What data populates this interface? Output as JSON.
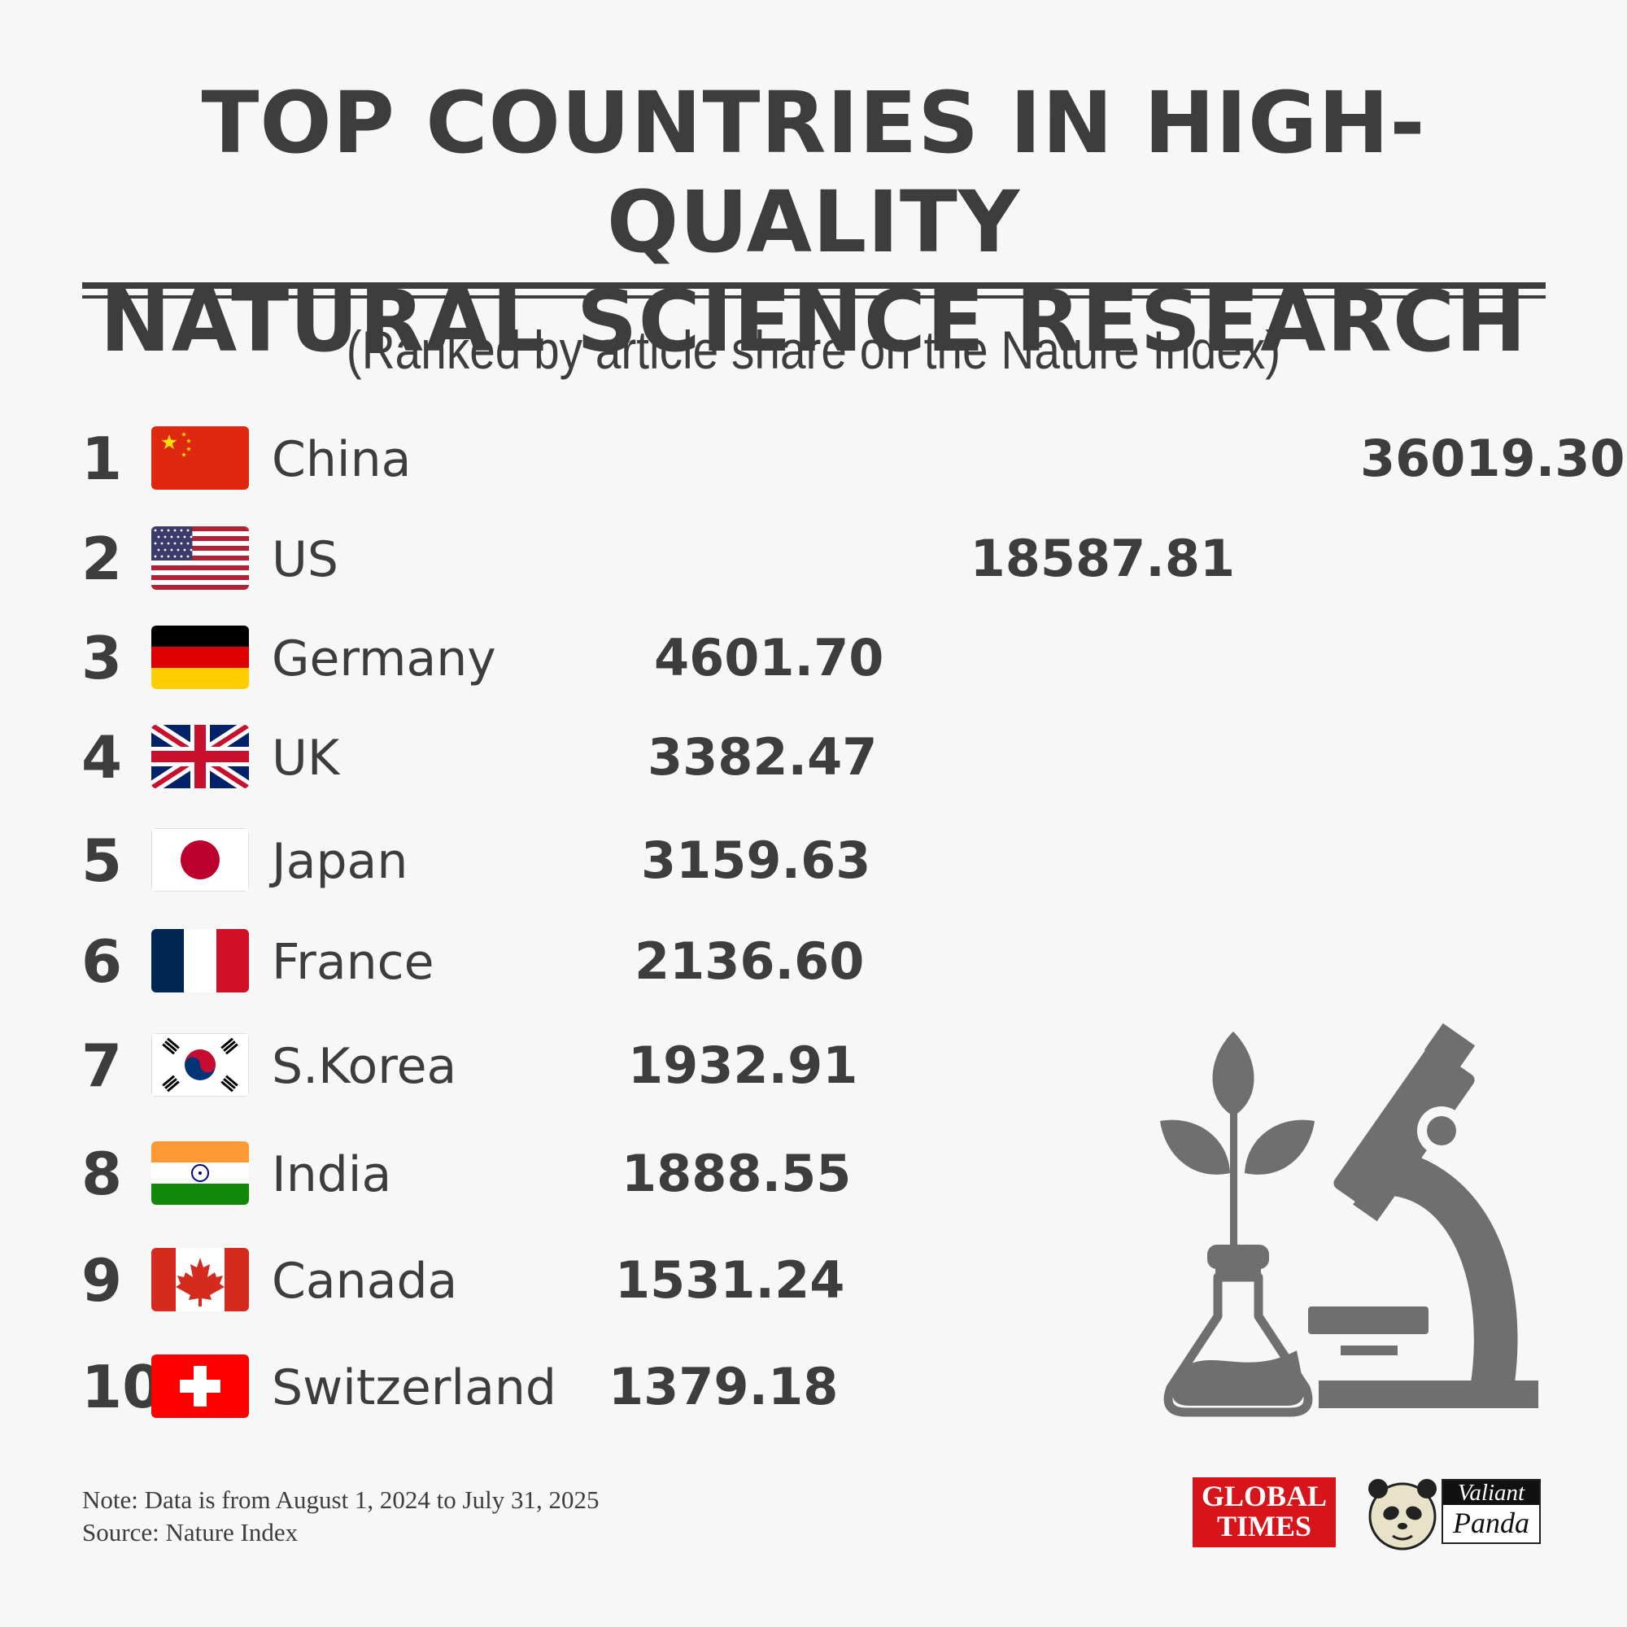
{
  "header": {
    "title_line1": "TOP COUNTRIES IN HIGH-QUALITY",
    "title_line2": "NATURAL SCIENCE RESEARCH",
    "subtitle": "(Ranked by article share on the Nature Index)"
  },
  "chart_data": {
    "type": "bar",
    "unit_icon": "flask-icon",
    "categories": [
      "China",
      "US",
      "Germany",
      "UK",
      "Japan",
      "France",
      "S.Korea",
      "India",
      "Canada",
      "Switzerland"
    ],
    "ranks": [
      "1",
      "2",
      "3",
      "4",
      "5",
      "6",
      "7",
      "8",
      "9",
      "10"
    ],
    "value_labels": [
      "36019.30",
      "18587.81",
      "4601.70",
      "3382.47",
      "3159.63",
      "2136.60",
      "1932.91",
      "1888.55",
      "1531.24",
      "1379.18"
    ],
    "values": [
      36019.3,
      18587.81,
      4601.7,
      3382.47,
      3159.63,
      2136.6,
      1932.91,
      1888.55,
      1531.24,
      1379.18
    ],
    "colors": {
      "first": "#d7262b",
      "others": "#4a6f92"
    }
  },
  "footer": {
    "note": "Note: Data is from August 1, 2024 to July 31, 2025",
    "source": "Source: Nature Index",
    "logo_global_times_line1": "GLOBAL",
    "logo_global_times_line2": "TIMES",
    "logo_valiant": "Valiant",
    "logo_panda": "Panda"
  }
}
